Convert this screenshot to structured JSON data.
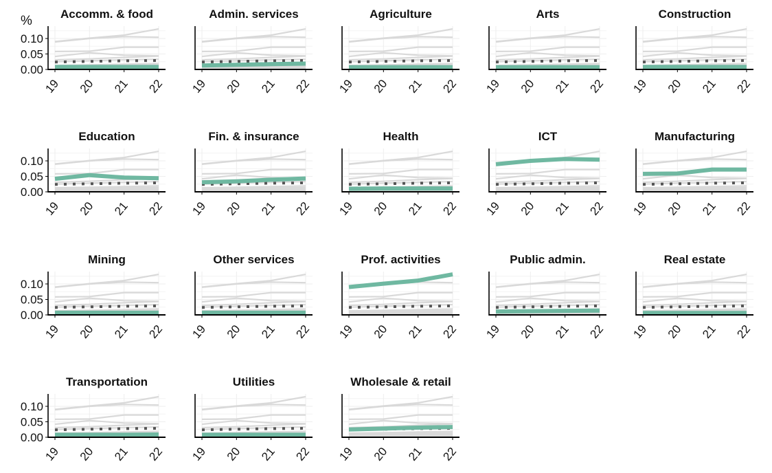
{
  "chart_data": {
    "type": "line",
    "layout": "small-multiples",
    "y_unit_label": "%",
    "x_ticks": [
      "19",
      "20",
      "21",
      "22"
    ],
    "y_ticks": [
      "0.00",
      "0.05",
      "0.10"
    ],
    "ylim": [
      0,
      0.14
    ],
    "grid": true,
    "legend": "none",
    "colors": {
      "highlight": "#6fb8a1",
      "background": "#d9d9d9",
      "average": "#555555",
      "band": "#cfcfcf",
      "grid": "#eeeeee",
      "axis": "#000000"
    },
    "x": [
      2019,
      2020,
      2021,
      2022
    ],
    "band_top": [
      0.012,
      0.012,
      0.012,
      0.012
    ],
    "average": [
      0.024,
      0.026,
      0.028,
      0.029
    ],
    "panels": [
      {
        "title": "Accomm. & food",
        "values": [
          0.008,
          0.008,
          0.008,
          0.008
        ]
      },
      {
        "title": "Admin. services",
        "values": [
          0.013,
          0.015,
          0.017,
          0.019
        ]
      },
      {
        "title": "Agriculture",
        "values": [
          0.007,
          0.007,
          0.007,
          0.007
        ]
      },
      {
        "title": "Arts",
        "values": [
          0.007,
          0.007,
          0.007,
          0.007
        ]
      },
      {
        "title": "Construction",
        "values": [
          0.008,
          0.008,
          0.008,
          0.008
        ]
      },
      {
        "title": "Education",
        "values": [
          0.042,
          0.054,
          0.046,
          0.044
        ]
      },
      {
        "title": "Fin. & insurance",
        "values": [
          0.031,
          0.034,
          0.039,
          0.043
        ]
      },
      {
        "title": "Health",
        "values": [
          0.01,
          0.011,
          0.011,
          0.011
        ]
      },
      {
        "title": "ICT",
        "values": [
          0.089,
          0.1,
          0.106,
          0.104
        ]
      },
      {
        "title": "Manufacturing",
        "values": [
          0.058,
          0.059,
          0.072,
          0.072
        ]
      },
      {
        "title": "Mining",
        "values": [
          0.007,
          0.007,
          0.007,
          0.007
        ]
      },
      {
        "title": "Other services",
        "values": [
          0.007,
          0.007,
          0.007,
          0.007
        ]
      },
      {
        "title": "Prof. activities",
        "values": [
          0.09,
          0.101,
          0.111,
          0.131
        ]
      },
      {
        "title": "Public admin.",
        "values": [
          0.011,
          0.012,
          0.013,
          0.014
        ]
      },
      {
        "title": "Real estate",
        "values": [
          0.006,
          0.006,
          0.006,
          0.006
        ]
      },
      {
        "title": "Transportation",
        "values": [
          0.008,
          0.008,
          0.008,
          0.009
        ]
      },
      {
        "title": "Utilities",
        "values": [
          0.008,
          0.008,
          0.008,
          0.008
        ]
      },
      {
        "title": "Wholesale & retail",
        "values": [
          0.025,
          0.028,
          0.031,
          0.033
        ]
      }
    ]
  }
}
